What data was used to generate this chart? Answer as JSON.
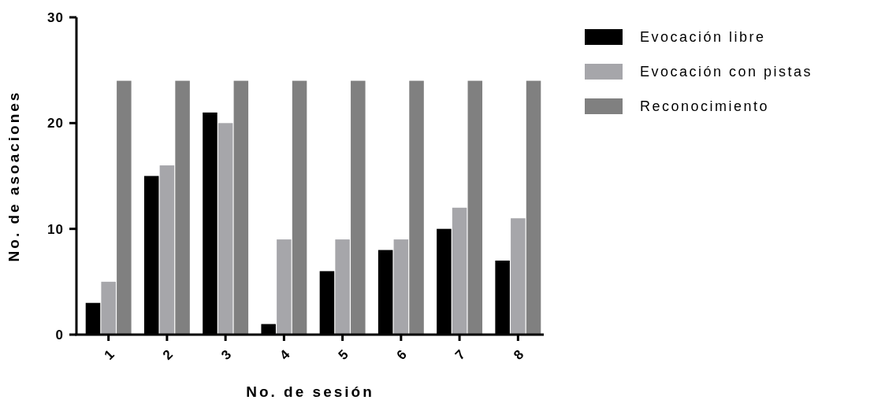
{
  "chart_data": {
    "type": "bar",
    "xlabel": "No. de sesión",
    "ylabel": "No. de asoaciones",
    "categories": [
      "1",
      "2",
      "3",
      "4",
      "5",
      "6",
      "7",
      "8"
    ],
    "series": [
      {
        "name": "Evocación libre",
        "color": "#000000",
        "values": [
          3,
          15,
          21,
          1,
          6,
          8,
          10,
          7
        ]
      },
      {
        "name": "Evocación con pistas",
        "color": "#a6a6aa",
        "values": [
          5,
          16,
          20,
          9,
          9,
          9,
          12,
          11
        ]
      },
      {
        "name": "Reconocimiento",
        "color": "#808080",
        "values": [
          24,
          24,
          24,
          24,
          24,
          24,
          24,
          24
        ]
      }
    ],
    "ylim": [
      0,
      30
    ],
    "yticks": [
      0,
      10,
      20,
      30
    ],
    "grid": false,
    "legend": "top right"
  }
}
